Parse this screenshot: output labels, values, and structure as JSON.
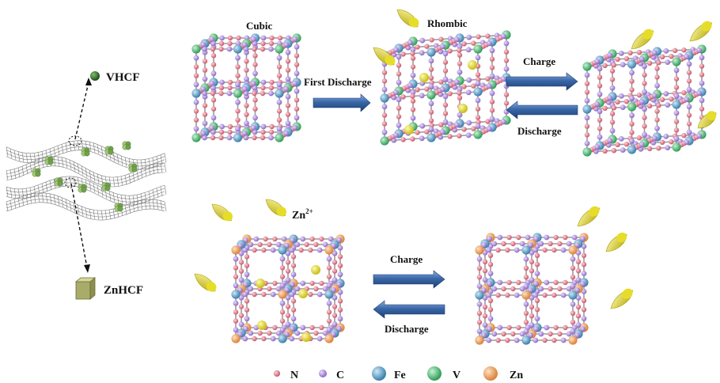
{
  "labels": {
    "vhcf": "VHCF",
    "znhcf": "ZnHCF",
    "cubic": "Cubic",
    "rhombic": "Rhombic",
    "first_discharge": "First Discharge",
    "charge_top": "Charge",
    "discharge_top": "Discharge",
    "zn_ion": "Zn",
    "zn_ion_sup": "2+",
    "charge_bottom": "Charge",
    "discharge_bottom": "Discharge"
  },
  "legend": [
    {
      "label": "N",
      "color": "#d9707e"
    },
    {
      "label": "C",
      "color": "#a98ad6"
    },
    {
      "label": "Fe",
      "color": "#4f97c2"
    },
    {
      "label": "V",
      "color": "#4cbb74"
    },
    {
      "label": "Zn",
      "color": "#efa25a"
    }
  ],
  "colors": {
    "n_atom": "#d9707e",
    "c_atom": "#a98ad6",
    "fe_atom": "#4f97c2",
    "v_atom": "#4cbb74",
    "zn_atom": "#efa25a",
    "zn_ion": "#e2dc3c",
    "arrow": "#27508f",
    "vhcf_dot": "#2f6b2a",
    "znhcf_cube": "#b8ba7a"
  }
}
